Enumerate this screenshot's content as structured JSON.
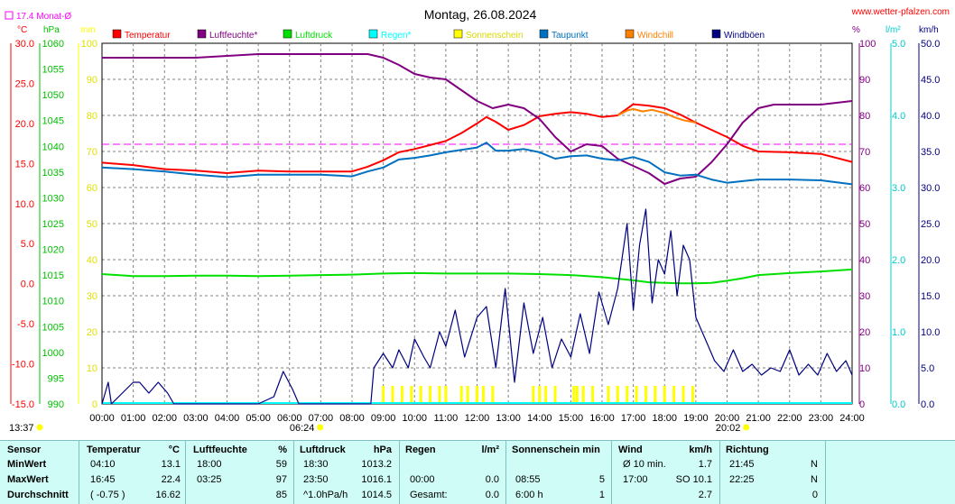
{
  "header": {
    "title": "Montag, 26.08.2024",
    "site": "www.wetter-pfalzen.com",
    "month_avg_label": "17.4 Monat-Ø",
    "units_left": [
      "°C",
      "hPa",
      "mm"
    ],
    "units_right": [
      "%",
      "l/m²",
      "km/h"
    ]
  },
  "legend": [
    {
      "name": "Temperatur",
      "color": "#ff0000"
    },
    {
      "name": "Luftfeuchte*",
      "color": "#800080"
    },
    {
      "name": "Luftdruck",
      "color": "#00e000"
    },
    {
      "name": "Regen*",
      "color": "#00ffff"
    },
    {
      "name": "Sonnenschein",
      "color": "#ffff00"
    },
    {
      "name": "Taupunkt",
      "color": "#0070c0"
    },
    {
      "name": "Windchill",
      "color": "#ff8000"
    },
    {
      "name": "Windböen",
      "color": "#000080"
    }
  ],
  "chart_data": {
    "type": "line",
    "x_ticks": [
      "00:00",
      "01:00",
      "02:00",
      "03:00",
      "04:00",
      "05:00",
      "06:00",
      "07:00",
      "08:00",
      "09:00",
      "10:00",
      "11:00",
      "12:00",
      "13:00",
      "14:00",
      "15:00",
      "16:00",
      "17:00",
      "18:00",
      "19:00",
      "20:00",
      "21:00",
      "22:00",
      "23:00",
      "24:00"
    ],
    "sunrise": "06:24",
    "sunset": "20:02",
    "current_time": "13:37",
    "axes": {
      "temp": {
        "unit": "°C",
        "min": -15,
        "max": 30,
        "ticks": [
          "30.0",
          "25.0",
          "20.0",
          "15.0",
          "10.0",
          "5.0",
          "0.0",
          "-5.0",
          "-10.0",
          "-15.0"
        ]
      },
      "pressure": {
        "unit": "hPa",
        "min": 990,
        "max": 1060,
        "ticks": [
          "1060",
          "1055",
          "1050",
          "1045",
          "1040",
          "1035",
          "1030",
          "1025",
          "1020",
          "1015",
          "1010",
          "1005",
          "1000",
          "995",
          "990"
        ]
      },
      "rain_mm": {
        "unit": "mm",
        "min": 0,
        "max": 100,
        "ticks": [
          "100",
          "90",
          "80",
          "70",
          "60",
          "50",
          "40",
          "30",
          "20",
          "10",
          "0"
        ]
      },
      "humidity": {
        "unit": "%",
        "min": 0,
        "max": 100,
        "ticks": [
          "100",
          "90",
          "80",
          "70",
          "60",
          "50",
          "40",
          "30",
          "20",
          "10",
          "0"
        ]
      },
      "rain_rate": {
        "unit": "l/m²",
        "min": 0,
        "max": 5,
        "ticks": [
          "5.0",
          "4.0",
          "3.0",
          "2.0",
          "1.0",
          "0.0"
        ]
      },
      "wind": {
        "unit": "km/h",
        "min": 0,
        "max": 50,
        "ticks": [
          "50.0",
          "45.0",
          "40.0",
          "35.0",
          "30.0",
          "25.0",
          "20.0",
          "15.0",
          "10.0",
          "5.0",
          "0.0"
        ]
      }
    },
    "month_avg_temp": 17.4,
    "series": [
      {
        "name": "Temperatur",
        "axis": "temp",
        "color": "#ff0000",
        "x": [
          0,
          1,
          2,
          3,
          4,
          5,
          6,
          7,
          8,
          8.5,
          9,
          9.5,
          10,
          10.5,
          11,
          11.5,
          12,
          12.3,
          12.6,
          13,
          13.5,
          14,
          14.5,
          15,
          15.5,
          16,
          16.5,
          17,
          17.5,
          18,
          18.5,
          19,
          19.5,
          20,
          20.5,
          21,
          22,
          23,
          24
        ],
        "y": [
          15.1,
          14.8,
          14.3,
          14.1,
          13.8,
          14.1,
          14.0,
          14.0,
          14.0,
          14.6,
          15.4,
          16.4,
          16.8,
          17.3,
          17.8,
          18.8,
          20.0,
          20.8,
          20.2,
          19.2,
          19.8,
          20.9,
          21.2,
          21.4,
          21.2,
          20.8,
          21.0,
          22.4,
          22.2,
          21.9,
          21.1,
          20.1,
          19.2,
          18.3,
          17.2,
          16.5,
          16.4,
          16.2,
          15.2
        ]
      },
      {
        "name": "Luftfeuchte*",
        "axis": "humidity",
        "color": "#800080",
        "x": [
          0,
          1,
          2,
          3,
          4,
          5,
          6,
          7,
          8,
          8.5,
          9,
          9.5,
          10,
          10.5,
          11,
          11.5,
          12,
          12.5,
          13,
          13.5,
          14,
          14.5,
          15,
          15.5,
          16,
          16.5,
          17,
          17.5,
          18,
          18.5,
          19,
          19.5,
          20,
          20.5,
          21,
          21.5,
          22,
          23,
          24
        ],
        "y": [
          96,
          96,
          96,
          96,
          96.5,
          97,
          97,
          97,
          97,
          97,
          96,
          94,
          91.5,
          90.5,
          90,
          87,
          84,
          82,
          83,
          82,
          79,
          74,
          70,
          72,
          71.5,
          68,
          66,
          64,
          61,
          62.5,
          63,
          67,
          72,
          78,
          82,
          83,
          83,
          83,
          84
        ]
      },
      {
        "name": "Luftdruck",
        "axis": "pressure",
        "color": "#00e000",
        "x": [
          0,
          1,
          2,
          3,
          4,
          5,
          6,
          7,
          8,
          9,
          10,
          11,
          12,
          13,
          14,
          15,
          16,
          16.5,
          17,
          17.5,
          18,
          18.5,
          19,
          19.5,
          20,
          20.5,
          21,
          22,
          23,
          24
        ],
        "y": [
          1015.2,
          1014.8,
          1014.8,
          1014.9,
          1014.9,
          1014.8,
          1014.9,
          1015.0,
          1015.1,
          1015.3,
          1015.4,
          1015.3,
          1015.3,
          1015.3,
          1015.2,
          1015.0,
          1014.6,
          1014.3,
          1014.0,
          1013.6,
          1013.5,
          1013.4,
          1013.4,
          1013.5,
          1013.9,
          1014.4,
          1015.0,
          1015.4,
          1015.7,
          1016.1
        ]
      },
      {
        "name": "Taupunkt",
        "axis": "temp",
        "color": "#0070c0",
        "x": [
          0,
          1,
          2,
          3,
          4,
          5,
          6,
          7,
          8,
          8.5,
          9,
          9.5,
          10,
          10.5,
          11,
          11.5,
          12,
          12.3,
          12.6,
          13,
          13.5,
          14,
          14.5,
          15,
          15.5,
          16,
          16.5,
          17,
          17.5,
          18,
          18.5,
          19,
          19.5,
          20,
          20.5,
          21,
          22,
          23,
          24
        ],
        "y": [
          14.5,
          14.3,
          14.0,
          13.6,
          13.3,
          13.6,
          13.6,
          13.6,
          13.4,
          14.0,
          14.5,
          15.5,
          15.7,
          16.0,
          16.4,
          16.7,
          17.0,
          17.6,
          16.6,
          16.6,
          16.8,
          16.4,
          15.6,
          15.9,
          16.0,
          15.6,
          15.4,
          15.8,
          15.2,
          13.9,
          13.5,
          13.6,
          13.0,
          12.6,
          12.8,
          13.0,
          13.0,
          12.9,
          12.4
        ]
      },
      {
        "name": "Windchill",
        "axis": "temp",
        "color": "#ff8000",
        "x": [
          16.5,
          16.8,
          17,
          17.3,
          17.6,
          18,
          18.3,
          18.6,
          19
        ],
        "y": [
          21.0,
          21.6,
          21.8,
          21.5,
          21.7,
          21.3,
          20.8,
          20.4,
          20.1
        ]
      },
      {
        "name": "Windböen",
        "axis": "wind",
        "color": "#000080",
        "x": [
          0,
          0.2,
          0.3,
          1,
          1.2,
          1.5,
          1.8,
          2.1,
          2.3,
          3,
          4,
          5,
          5.5,
          5.8,
          6.1,
          6.3,
          7,
          8,
          8.6,
          8.7,
          9,
          9.3,
          9.5,
          9.8,
          10,
          10.3,
          10.5,
          10.8,
          11,
          11.3,
          11.6,
          12,
          12.3,
          12.6,
          12.9,
          13.2,
          13.5,
          13.8,
          14.1,
          14.4,
          14.7,
          15,
          15.3,
          15.6,
          15.9,
          16.2,
          16.5,
          16.8,
          17,
          17.2,
          17.4,
          17.6,
          17.8,
          18,
          18.2,
          18.4,
          18.6,
          18.8,
          19,
          19.3,
          19.6,
          19.9,
          20.2,
          20.5,
          20.8,
          21.1,
          21.4,
          21.7,
          22,
          22.3,
          22.6,
          22.9,
          23.2,
          23.5,
          23.8,
          24
        ],
        "y": [
          0,
          3,
          0,
          3,
          3,
          1.5,
          3,
          1.5,
          0,
          0,
          0,
          0,
          1,
          4.5,
          2,
          0,
          0,
          0,
          0,
          5,
          7,
          5,
          7.5,
          5,
          9,
          6.5,
          5,
          10,
          8,
          13,
          6.5,
          12,
          13.5,
          5,
          16,
          3,
          14,
          7,
          12,
          5,
          9,
          6.5,
          12.5,
          7,
          15.5,
          11,
          16,
          25,
          13,
          22,
          27,
          14,
          20,
          18,
          24,
          15,
          22,
          20,
          12,
          9,
          6,
          4.5,
          7.5,
          4.5,
          5.5,
          4,
          5,
          4.5,
          7.5,
          4,
          5.5,
          4,
          7,
          4.5,
          6,
          4
        ]
      },
      {
        "name": "Sonnenschein",
        "axis": "wind",
        "color": "#ffff00",
        "x": [
          9.0,
          9.3,
          9.6,
          9.9,
          10.2,
          10.5,
          10.8,
          11.0,
          11.5,
          11.7,
          12.0,
          12.2,
          12.5,
          13.8,
          14.0,
          14.2,
          14.5,
          15.1,
          15.2,
          15.4,
          15.7,
          16.2,
          16.5,
          16.8,
          17.1,
          17.4,
          17.7,
          18.0,
          18.3,
          18.6,
          18.9
        ],
        "y": [
          1,
          1,
          1,
          1,
          1,
          1,
          1,
          1,
          1,
          1,
          1,
          1,
          1,
          1,
          1,
          1,
          1,
          1,
          1,
          1,
          1,
          1,
          1,
          1,
          1,
          1,
          1,
          1,
          1,
          1,
          1
        ]
      }
    ]
  },
  "table": {
    "headers": {
      "sensor": "Sensor",
      "temp": "Temperatur",
      "temp_unit": "°C",
      "hum": "Luftfeuchte",
      "hum_unit": "%",
      "press": "Luftdruck",
      "press_unit": "hPa",
      "rain": "Regen",
      "rain_unit": "l/m²",
      "sun": "Sonnenschein min",
      "wind": "Wind",
      "wind_unit": "km/h",
      "dir": "Richtung"
    },
    "rows": [
      {
        "label": "MinWert",
        "temp_time": "04:10",
        "temp_val": "13.1",
        "hum_time": "18:00",
        "hum_val": "59",
        "press_time": "18:30",
        "press_val": "1013.2",
        "rain_time": "",
        "rain_val": "",
        "sun_time": "",
        "sun_val": "",
        "wind_time": "Ø 10 min.",
        "wind_val": "1.7",
        "dir_time": "21:45",
        "dir_val": "N"
      },
      {
        "label": "MaxWert",
        "temp_time": "16:45",
        "temp_val": "22.4",
        "hum_time": "03:25",
        "hum_val": "97",
        "press_time": "23:50",
        "press_val": "1016.1",
        "rain_time": "00:00",
        "rain_val": "0.0",
        "sun_time": "08:55",
        "sun_val": "5",
        "wind_time": "17:00",
        "wind_val": "SO 10.1",
        "dir_time": "22:25",
        "dir_val": "N"
      },
      {
        "label": "Durchschnitt",
        "temp_time": "( -0.75 )",
        "temp_val": "16.62",
        "hum_time": "",
        "hum_val": "85",
        "press_time": "^1.0hPa/h",
        "press_val": "1014.5",
        "rain_time": "Gesamt:",
        "rain_val": "0.0",
        "sun_time": "6:00 h",
        "sun_val": "1",
        "wind_time": "",
        "wind_val": "2.7",
        "dir_time": "",
        "dir_val": "0"
      }
    ]
  }
}
